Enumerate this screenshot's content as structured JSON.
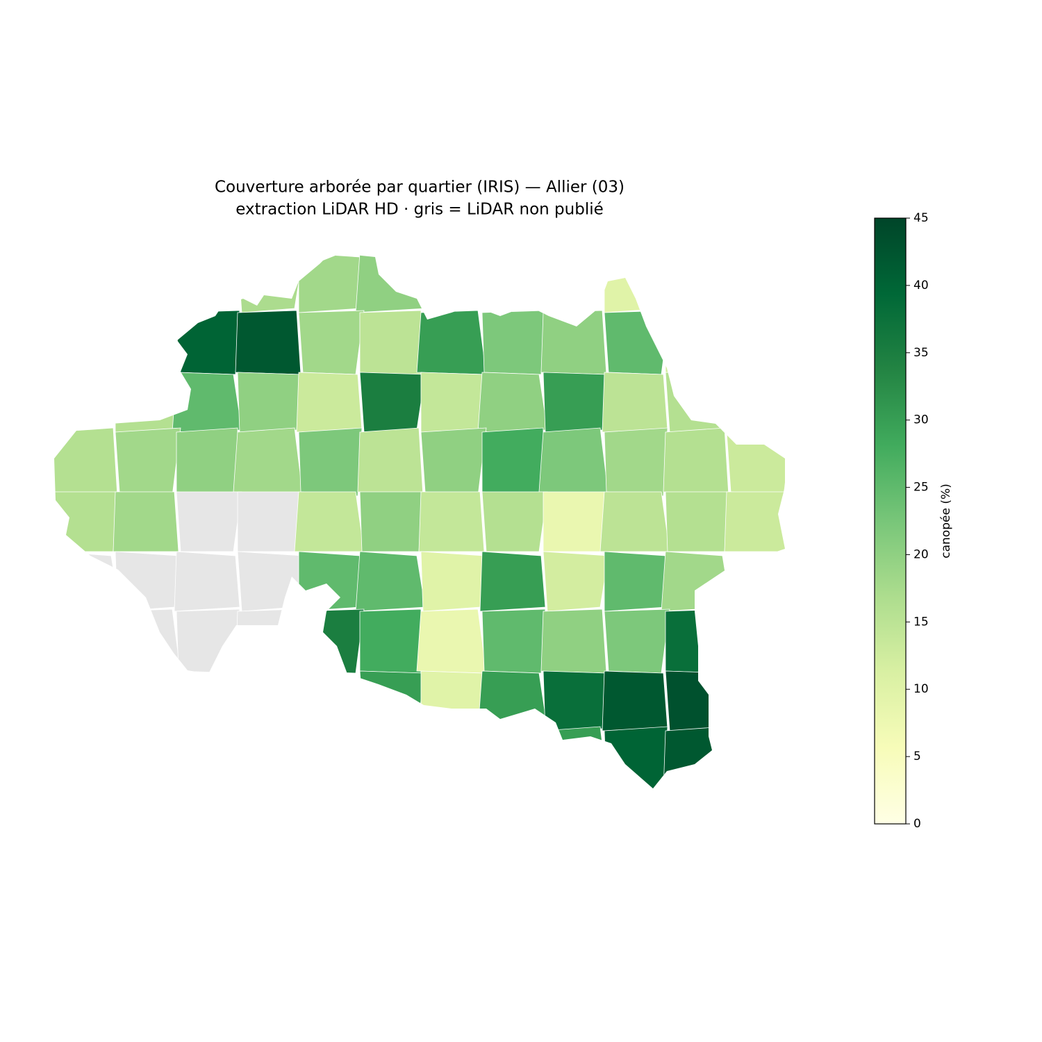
{
  "chart_data": {
    "type": "choropleth",
    "title": "Couverture arborée par quartier (IRIS) — Allier (03)",
    "subtitle": "extraction LiDAR HD · gris = LiDAR non publié",
    "cmap": "YlGn",
    "missing_color": "#e6e6e6",
    "values": [
      [
        17,
        18,
        20,
        10
      ],
      [
        40,
        42,
        18,
        15,
        30,
        22,
        20,
        25,
        12
      ],
      [
        16,
        25,
        20,
        13,
        35,
        14,
        20,
        30,
        15,
        16
      ],
      [
        16,
        18,
        20,
        18,
        22,
        15,
        20,
        28,
        22,
        18,
        16,
        13
      ],
      [
        16,
        18,
        null,
        null,
        14,
        20,
        14,
        16,
        8,
        15,
        16,
        13
      ],
      [
        null,
        null,
        null,
        null,
        25,
        25,
        10,
        30,
        12,
        25,
        18
      ],
      [
        null,
        null,
        null,
        35,
        28,
        8,
        25,
        20,
        22,
        38
      ],
      [
        30,
        10,
        30,
        38,
        42,
        43
      ],
      [
        30,
        40,
        42
      ]
    ],
    "colorbar": {
      "label": "canopée (%)",
      "lim": [
        0,
        45
      ],
      "ticks": [
        0,
        5,
        10,
        15,
        20,
        25,
        30,
        35,
        40,
        45
      ]
    }
  }
}
